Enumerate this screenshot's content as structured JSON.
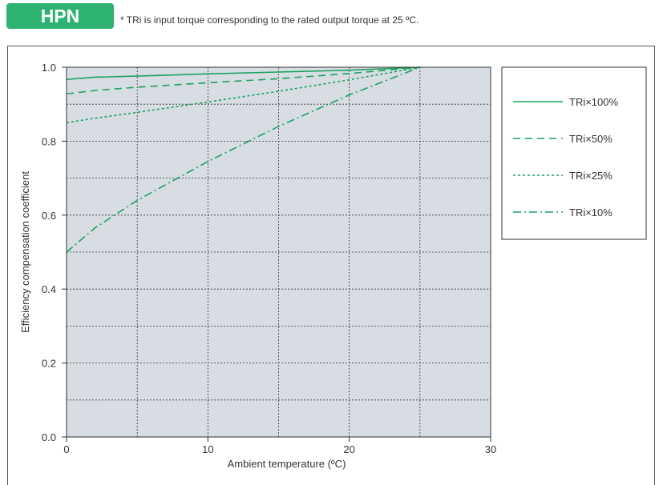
{
  "badge": {
    "label": "HPN",
    "color": "#2db36f"
  },
  "note": "* TRi is input torque corresponding to the rated output torque at 25 ºC.",
  "colors": {
    "plot_bg": "#d7dde2",
    "series": "#1aa25e",
    "grid": "#333333"
  },
  "chart_data": {
    "type": "line",
    "xlabel": "Ambient temperature (ºC)",
    "ylabel": "Efficiency compensation coefficient",
    "xlim": [
      0,
      30
    ],
    "ylim": [
      0,
      1.0
    ],
    "xticks": [
      0,
      10,
      20,
      30
    ],
    "xtick_labels": [
      "0",
      "10",
      "20",
      "30"
    ],
    "yticks": [
      0,
      0.2,
      0.4,
      0.6,
      0.8,
      1.0
    ],
    "ytick_labels": [
      "0.0",
      "0.2",
      "0.4",
      "0.6",
      "0.8",
      "1.0"
    ],
    "grid": true,
    "legend_position": "right",
    "series": [
      {
        "name": "TRi×100%",
        "style": "solid",
        "x": [
          0,
          2,
          5,
          10,
          15,
          20,
          25
        ],
        "y": [
          0.967,
          0.973,
          0.976,
          0.982,
          0.987,
          0.992,
          1.0
        ]
      },
      {
        "name": "TRi×50%",
        "style": "dashed",
        "x": [
          0,
          2,
          5,
          10,
          15,
          20,
          25
        ],
        "y": [
          0.928,
          0.937,
          0.946,
          0.958,
          0.969,
          0.983,
          1.0
        ]
      },
      {
        "name": "TRi×25%",
        "style": "dotted",
        "x": [
          0,
          2,
          5,
          10,
          15,
          20,
          25
        ],
        "y": [
          0.85,
          0.862,
          0.878,
          0.906,
          0.935,
          0.966,
          1.0
        ]
      },
      {
        "name": "TRi×10%",
        "style": "dashdot",
        "x": [
          0,
          2,
          5,
          10,
          15,
          20,
          25
        ],
        "y": [
          0.5,
          0.565,
          0.64,
          0.745,
          0.84,
          0.925,
          1.0
        ]
      }
    ]
  }
}
